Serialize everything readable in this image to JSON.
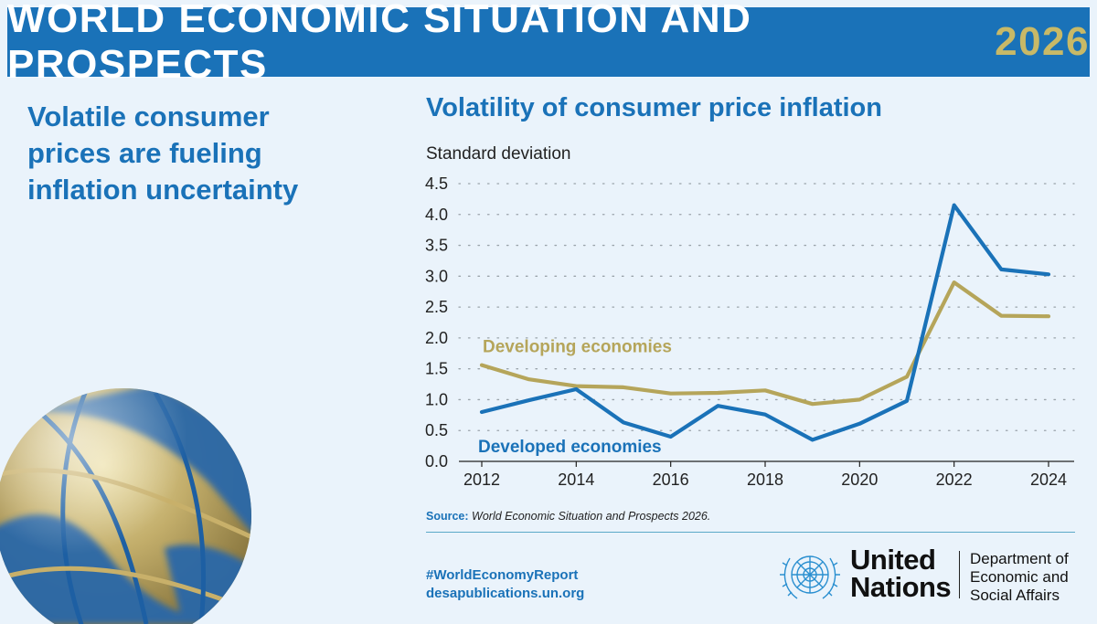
{
  "banner": {
    "title": "WORLD ECONOMIC SITUATION AND PROSPECTS",
    "year": "2026"
  },
  "headline": {
    "lines": [
      "Volatile consumer",
      "prices are fueling",
      "inflation uncertainty"
    ]
  },
  "chart_title": "Volatility of consumer price inflation",
  "footer": {
    "source_label": "Source:",
    "source_text": "World Economic Situation and Prospects 2026.",
    "hashtag": "#WorldEconomyReport",
    "website": "desapublications.un.org",
    "un_lines": [
      "United",
      "Nations"
    ],
    "desa_lines": [
      "Department of",
      "Economic and",
      "Social Affairs"
    ]
  },
  "colors": {
    "brand_blue": "#1a72b8",
    "gold": "#b5a55a",
    "year_gold": "#c8b967",
    "background": "#eaf3fb"
  },
  "chart_data": {
    "type": "line",
    "title": "Volatility of consumer price inflation",
    "ylabel": "Standard deviation",
    "xlabel": "",
    "ylim": [
      0,
      4.5
    ],
    "yticks": [
      "0.0",
      "0.5",
      "1.0",
      "1.5",
      "2.0",
      "2.5",
      "3.0",
      "3.5",
      "4.0",
      "4.5"
    ],
    "xticks": [
      "2012",
      "2014",
      "2016",
      "2018",
      "2020",
      "2022",
      "2024"
    ],
    "grid": "horizontal dotted",
    "x": [
      2012,
      2013,
      2014,
      2015,
      2016,
      2017,
      2018,
      2019,
      2020,
      2021,
      2022,
      2023,
      2024
    ],
    "series": [
      {
        "name": "Developing economies",
        "color": "#b5a55a",
        "values": [
          1.56,
          1.33,
          1.22,
          1.2,
          1.1,
          1.11,
          1.15,
          0.93,
          1.0,
          1.37,
          2.9,
          2.36,
          2.35
        ]
      },
      {
        "name": "Developed economies",
        "color": "#1a72b8",
        "values": [
          0.8,
          0.99,
          1.17,
          0.63,
          0.4,
          0.9,
          0.76,
          0.35,
          0.61,
          0.98,
          4.15,
          3.11,
          3.03
        ]
      }
    ]
  }
}
